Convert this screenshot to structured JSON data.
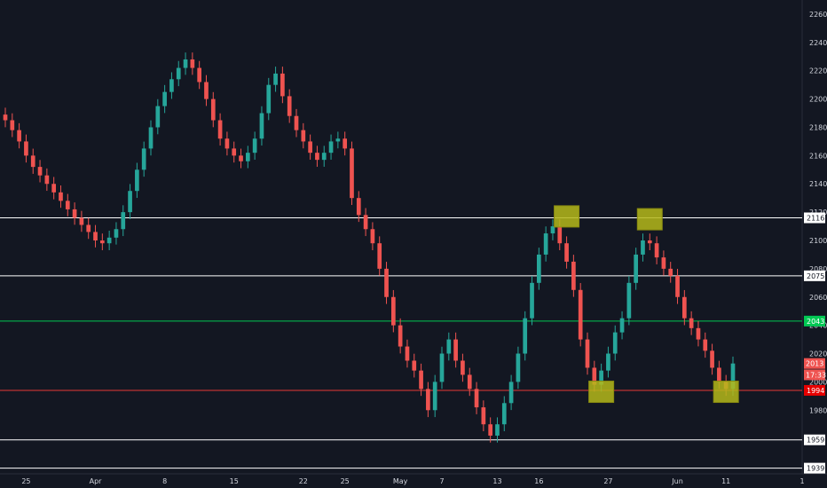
{
  "chart_data": {
    "type": "candlestick",
    "title": "",
    "xlabel": "",
    "ylabel": "",
    "colors": {
      "background": "#131722",
      "up": "#26a69a",
      "down": "#ef5350",
      "axis_text": "#d1d4dc",
      "level_white": "#ffffff",
      "level_green": "#00c853",
      "level_red": "#e53935",
      "highlight": "#b5b81a",
      "badge_red": "#ef5350",
      "badge_dark_red": "#e60000"
    },
    "ylim": [
      1935,
      2265
    ],
    "y_ticks": [
      "2260",
      "2240",
      "2220",
      "2200",
      "2180",
      "2160",
      "2140",
      "2120",
      "2100",
      "2080",
      "2060",
      "2040",
      "2020",
      "2000",
      "1980"
    ],
    "x_ticks": [
      "25",
      "Apr",
      "8",
      "15",
      "22",
      "25",
      "May",
      "7",
      "13",
      "16",
      "27",
      "Jun",
      "11",
      "1"
    ],
    "x_tick_index": [
      3,
      13,
      23,
      33,
      43,
      49,
      57,
      63,
      71,
      77,
      87,
      97,
      104,
      115
    ],
    "levels": [
      {
        "value": 2116,
        "label": "2116",
        "color": "white"
      },
      {
        "value": 2075,
        "label": "2075",
        "color": "white"
      },
      {
        "value": 2043,
        "label": "2043",
        "color": "green"
      },
      {
        "value": 1994,
        "label": "1994",
        "color": "red"
      },
      {
        "value": 1959,
        "label": "1959",
        "color": "white"
      },
      {
        "value": 1939,
        "label": "1939",
        "color": "white"
      }
    ],
    "price_badges": [
      {
        "label": "2013",
        "value": 2013
      },
      {
        "label": "17:33",
        "value": 2005
      }
    ],
    "highlight_boxes": [
      {
        "index": 81,
        "value": 2117
      },
      {
        "index": 93,
        "value": 2115
      },
      {
        "index": 86,
        "value": 1993
      },
      {
        "index": 104,
        "value": 1993
      }
    ],
    "closes": [
      2185,
      2178,
      2170,
      2160,
      2152,
      2146,
      2140,
      2134,
      2128,
      2122,
      2116,
      2111,
      2106,
      2100,
      2098,
      2102,
      2108,
      2120,
      2135,
      2150,
      2165,
      2180,
      2195,
      2205,
      2214,
      2222,
      2228,
      2222,
      2212,
      2200,
      2185,
      2172,
      2165,
      2160,
      2156,
      2162,
      2172,
      2190,
      2210,
      2218,
      2202,
      2188,
      2178,
      2170,
      2162,
      2157,
      2162,
      2170,
      2172,
      2165,
      2130,
      2118,
      2108,
      2098,
      2080,
      2060,
      2040,
      2025,
      2015,
      2008,
      1995,
      1980,
      2000,
      2020,
      2030,
      2015,
      2005,
      1995,
      1982,
      1970,
      1962,
      1970,
      1985,
      2000,
      2020,
      2045,
      2070,
      2090,
      2105,
      2110,
      2098,
      2085,
      2065,
      2030,
      2010,
      1998,
      2008,
      2020,
      2035,
      2045,
      2070,
      2090,
      2100,
      2098,
      2088,
      2080,
      2075,
      2060,
      2045,
      2038,
      2030,
      2022,
      2010,
      2000,
      1995,
      2013
    ],
    "ranges": [
      14,
      14,
      14,
      14,
      14,
      14,
      14,
      14,
      14,
      14,
      14,
      14,
      14,
      14,
      14,
      14,
      14,
      14,
      14,
      14,
      14,
      14,
      14,
      14,
      14,
      14,
      14,
      14,
      14,
      14,
      14,
      14,
      14,
      14,
      14,
      14,
      14,
      14,
      14,
      14,
      14,
      14,
      14,
      14,
      14,
      14,
      14,
      14,
      14,
      14,
      14,
      14,
      14,
      14,
      14,
      14,
      14,
      14,
      14,
      14,
      14,
      14,
      14,
      14,
      14,
      14,
      14,
      14,
      14,
      14,
      14,
      14,
      14,
      14,
      14,
      14,
      14,
      14,
      14,
      14,
      14,
      14,
      14,
      14,
      14,
      14,
      14,
      14,
      14,
      14,
      14,
      14,
      14,
      14,
      14,
      14,
      14,
      14,
      14,
      14,
      14,
      14,
      14,
      14,
      14,
      14
    ]
  }
}
